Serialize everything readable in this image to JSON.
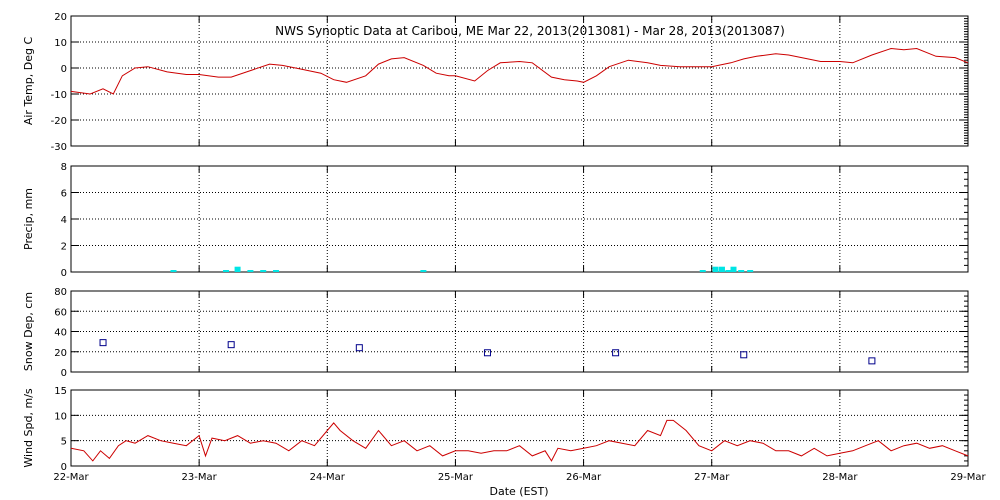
{
  "chart_data": {
    "title": "NWS Synoptic Data at Caribou, ME   Mar 22, 2013(2013081) - Mar 28, 2013(2013087)",
    "xlabel": "Date (EST)",
    "x_range": [
      "2013-03-22",
      "2013-03-29"
    ],
    "x_tick_labels": [
      "22-Mar",
      "23-Mar",
      "24-Mar",
      "25-Mar",
      "26-Mar",
      "27-Mar",
      "28-Mar",
      "29-Mar"
    ],
    "grid": "dotted vertical at day boundaries, dotted horizontal at major y ticks",
    "panels": [
      {
        "id": "air-temp",
        "type": "line",
        "ylabel": "Air Temp, Deg C",
        "ylim": [
          -30,
          20
        ],
        "y_ticks": [
          -30,
          -20,
          -10,
          0,
          10,
          20
        ],
        "color": "#cc0000",
        "series": [
          {
            "x": [
              0.0,
              0.15,
              0.25,
              0.33,
              0.4,
              0.5,
              0.6,
              0.75,
              0.9,
              1.0,
              1.15,
              1.25,
              1.4,
              1.55,
              1.65,
              1.8,
              1.95,
              2.05,
              2.15,
              2.3,
              2.4,
              2.5,
              2.6,
              2.75,
              2.85,
              2.95,
              3.0,
              3.15,
              3.25,
              3.35,
              3.5,
              3.6,
              3.75,
              3.85,
              3.95,
              4.0,
              4.1,
              4.2,
              4.35,
              4.5,
              4.6,
              4.75,
              4.85,
              5.0,
              5.15,
              5.25,
              5.35,
              5.5,
              5.6,
              5.75,
              5.85,
              6.0,
              6.1,
              6.25,
              6.4,
              6.5,
              6.6,
              6.75,
              6.9,
              7.0
            ],
            "values": [
              -9,
              -10,
              -8,
              -10,
              -3,
              0,
              0.5,
              -1.5,
              -2.5,
              -2.5,
              -3.5,
              -3.5,
              -1,
              1.5,
              1,
              -0.5,
              -2,
              -4.5,
              -5.5,
              -3,
              1.5,
              3.5,
              4,
              1,
              -2,
              -3,
              -3,
              -5,
              -1,
              2,
              2.5,
              2,
              -3.5,
              -4.5,
              -5,
              -5.5,
              -3,
              0.5,
              3,
              2,
              1,
              0.5,
              0.5,
              0.5,
              2,
              3.5,
              4.5,
              5.5,
              5,
              3.5,
              2.5,
              2.5,
              2,
              5,
              7.5,
              7,
              7.5,
              4.5,
              4,
              2
            ]
          }
        ]
      },
      {
        "id": "precip",
        "type": "bar",
        "ylabel": "Precip, mm",
        "ylim": [
          0,
          8
        ],
        "y_ticks": [
          0,
          2,
          4,
          6,
          8
        ],
        "color": "#00e5e5",
        "series": [
          {
            "x": [
              0.8,
              1.21,
              1.3,
              1.4,
              1.5,
              1.6,
              2.75,
              4.93,
              5.03,
              5.08,
              5.13,
              5.17,
              5.23,
              5.3
            ],
            "values": [
              0.15,
              0.15,
              0.4,
              0.15,
              0.15,
              0.15,
              0.15,
              0.15,
              0.4,
              0.4,
              0.15,
              0.4,
              0.15,
              0.15
            ]
          }
        ]
      },
      {
        "id": "snow-depth",
        "type": "scatter",
        "ylabel": "Snow Dep, cm",
        "ylim": [
          0,
          80
        ],
        "y_ticks": [
          0,
          20,
          40,
          60,
          80
        ],
        "color": "#00008b",
        "series": [
          {
            "x": [
              0.25,
              1.25,
              2.25,
              3.25,
              4.25,
              5.25,
              6.25
            ],
            "values": [
              29,
              27,
              24,
              19,
              19,
              17,
              11
            ]
          }
        ]
      },
      {
        "id": "wind-speed",
        "type": "line",
        "ylabel": "Wind Spd, m/s",
        "ylim": [
          0,
          15
        ],
        "y_ticks": [
          0,
          5,
          10,
          15
        ],
        "color": "#cc0000",
        "series": [
          {
            "x": [
              0.0,
              0.1,
              0.17,
              0.23,
              0.3,
              0.37,
              0.43,
              0.5,
              0.6,
              0.7,
              0.8,
              0.9,
              1.0,
              1.05,
              1.1,
              1.2,
              1.3,
              1.4,
              1.5,
              1.6,
              1.7,
              1.8,
              1.9,
              2.0,
              2.05,
              2.1,
              2.2,
              2.3,
              2.4,
              2.5,
              2.6,
              2.7,
              2.8,
              2.9,
              3.0,
              3.1,
              3.2,
              3.3,
              3.4,
              3.5,
              3.6,
              3.7,
              3.75,
              3.8,
              3.9,
              4.0,
              4.1,
              4.2,
              4.3,
              4.4,
              4.5,
              4.6,
              4.65,
              4.7,
              4.8,
              4.9,
              5.0,
              5.1,
              5.2,
              5.3,
              5.4,
              5.5,
              5.6,
              5.7,
              5.8,
              5.9,
              6.0,
              6.1,
              6.2,
              6.3,
              6.4,
              6.5,
              6.6,
              6.7,
              6.8,
              6.9,
              7.0
            ],
            "values": [
              3.5,
              3,
              1,
              3,
              1.5,
              4,
              5,
              4.5,
              6,
              5,
              4.5,
              4,
              6,
              2,
              5.5,
              5,
              6,
              4.5,
              5,
              4.5,
              3,
              5,
              4,
              7,
              8.5,
              7,
              5,
              3.5,
              7,
              4,
              5,
              3,
              4,
              2,
              3,
              3,
              2.5,
              3,
              3,
              4,
              2,
              3,
              1,
              3.5,
              3,
              3.5,
              4,
              5,
              4.5,
              4,
              7,
              6,
              9,
              9,
              7,
              4,
              3,
              5,
              4,
              5,
              4.5,
              3,
              3,
              2,
              3.5,
              2,
              2.5,
              3,
              4,
              5,
              3,
              4,
              4.5,
              3.5,
              4,
              3,
              2
            ]
          }
        ]
      }
    ]
  }
}
